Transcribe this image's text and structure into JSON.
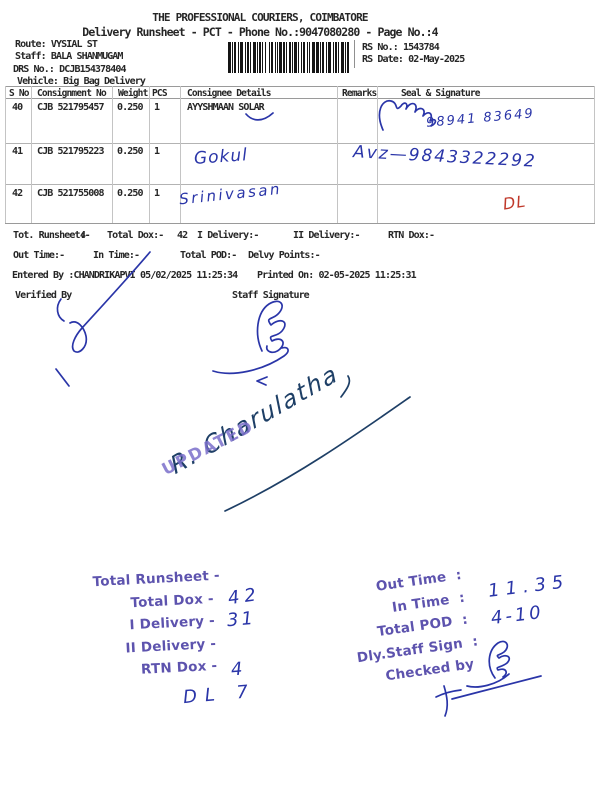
{
  "header": {
    "title": "THE PROFESSIONAL COURIERS, COIMBATORE",
    "subtitle": "Delivery Runsheet - PCT - Phone No.:9047080280 - Page No.:4",
    "route_label": "Route:",
    "route_value": "VYSIAL ST",
    "staff_label": "Staff:",
    "staff_value": "BALA SHANMUGAM",
    "drs_label": "DRS No.:",
    "drs_value": "DCJB154378404",
    "vehicle_label": "Vehicle:",
    "vehicle_value": "Big Bag Delivery",
    "rs_no_label": "RS No.:",
    "rs_no_value": "1543784",
    "rs_date_label": "RS Date:",
    "rs_date_value": "02-May-2025"
  },
  "table": {
    "columns": [
      "S No",
      "Consignment No",
      "Weight",
      "PCS",
      "Consignee Details",
      "Remarks",
      "Seal & Signature"
    ],
    "rows": [
      {
        "sno": "40",
        "consignment": "CJB 521795457",
        "weight": "0.250",
        "pcs": "1",
        "consignee": "AYYSHMAAN SOLAR",
        "remarks": ""
      },
      {
        "sno": "41",
        "consignment": "CJB 521795223",
        "weight": "0.250",
        "pcs": "1",
        "consignee": "",
        "remarks": ""
      },
      {
        "sno": "42",
        "consignment": "CJB 521755008",
        "weight": "0.250",
        "pcs": "1",
        "consignee": "",
        "remarks": ""
      }
    ]
  },
  "totals": {
    "runsheet_label": "Tot. Runsheet:-",
    "runsheet_value": "4",
    "dox_label": "Total Dox:-",
    "dox_value": "42",
    "i_delivery_label": "I Delivery:-",
    "ii_delivery_label": "II Delivery:-",
    "rtn_dox_label": "RTN Dox:-",
    "out_time_label": "Out Time:-",
    "in_time_label": "In Time:-",
    "total_pod_label": "Total POD:-",
    "delvy_points_label": "Delvy Points:-",
    "entered_by": "Entered By :CHANDRIKAPVI 05/02/2025 11:25:34",
    "printed_on": "Printed On: 02-05-2025 11:25:31",
    "verified_by_label": "Verified By",
    "staff_signature_label": "Staff Signature"
  },
  "handwriting": {
    "row40_consignee_phone": "98941 83649",
    "row41_consignee_name": "Gokul",
    "row41_phone": "Avz—9843322292",
    "row42_consignee_name": "Srinivasan",
    "row42_mark": "DL",
    "main_signature": "R. Charulatha",
    "total_dox_value": "42",
    "i_delivery_value": "31",
    "rtn_dox_value": "4",
    "dl_note": "DL 7",
    "out_time_value": "11.35",
    "in_time_value": "4-10"
  },
  "stamps": {
    "updated": "UPDATED",
    "left_lines": [
      "Total Runsheet -",
      "Total Dox -",
      "I Delivery -",
      "II Delivery -",
      "RTN Dox -"
    ],
    "right_lines": [
      "Out Time  :",
      "In Time  :",
      "Total POD  :",
      "Dly.Staff Sign  :",
      "Checked by"
    ]
  },
  "colors": {
    "ink_blue": "#2a35a8",
    "ink_red": "#c0392b",
    "stamp_purple": "#4c41a6",
    "updated_purple": "#7b6fcb",
    "signature_dark": "#1e3f66"
  }
}
